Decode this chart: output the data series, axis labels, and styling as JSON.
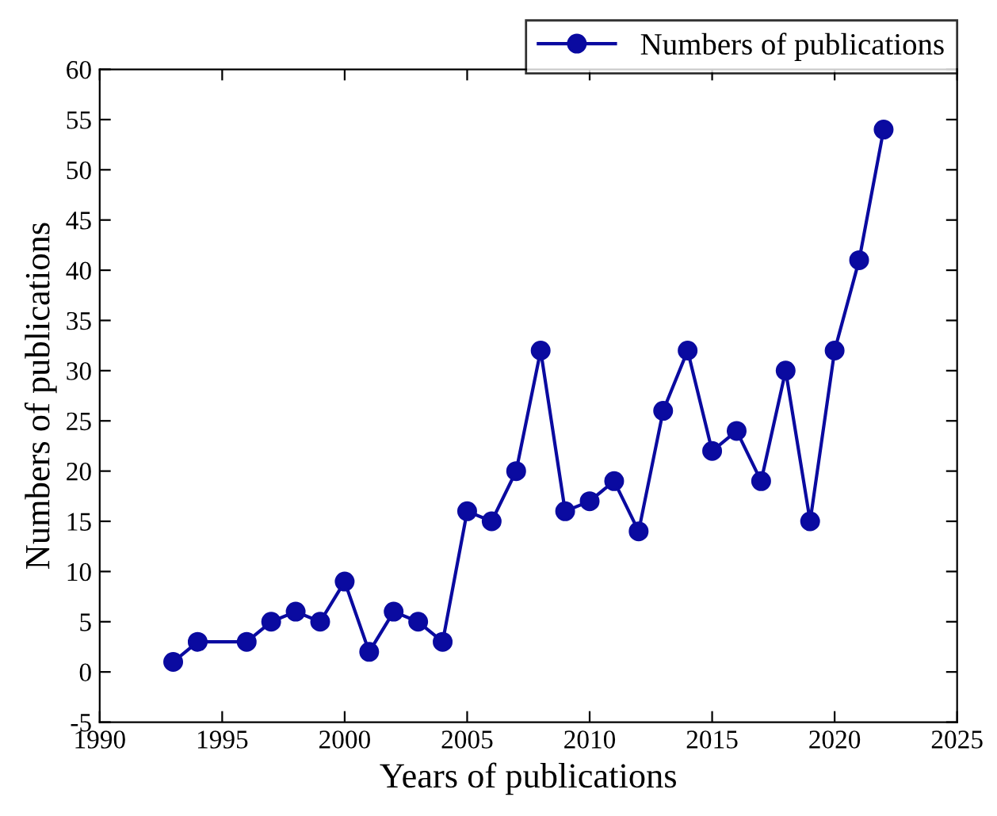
{
  "chart_data": {
    "type": "line",
    "xlabel": "Years of publications",
    "ylabel": "Numbers of publications",
    "x": [
      1993,
      1994,
      1996,
      1997,
      1998,
      1999,
      2000,
      2001,
      2002,
      2003,
      2004,
      2005,
      2006,
      2007,
      2008,
      2009,
      2010,
      2011,
      2012,
      2013,
      2014,
      2015,
      2016,
      2017,
      2018,
      2019,
      2020,
      2021,
      2022
    ],
    "series": [
      {
        "name": "Numbers of publications",
        "color": "#0a0aa0",
        "values": [
          1,
          3,
          3,
          5,
          6,
          5,
          9,
          2,
          6,
          5,
          3,
          16,
          15,
          20,
          32,
          16,
          17,
          19,
          14,
          26,
          32,
          22,
          24,
          19,
          30,
          15,
          32,
          41,
          54
        ]
      }
    ],
    "xlim": [
      1990,
      2025
    ],
    "xticks": [
      1990,
      1995,
      2000,
      2005,
      2010,
      2015,
      2020,
      2025
    ],
    "ylim": [
      -5,
      60
    ],
    "yticks": [
      -5,
      0,
      5,
      10,
      15,
      20,
      25,
      30,
      35,
      40,
      45,
      50,
      55,
      60
    ],
    "marker": "circle",
    "line_style": "solid",
    "grid": false,
    "legend": "top right"
  }
}
